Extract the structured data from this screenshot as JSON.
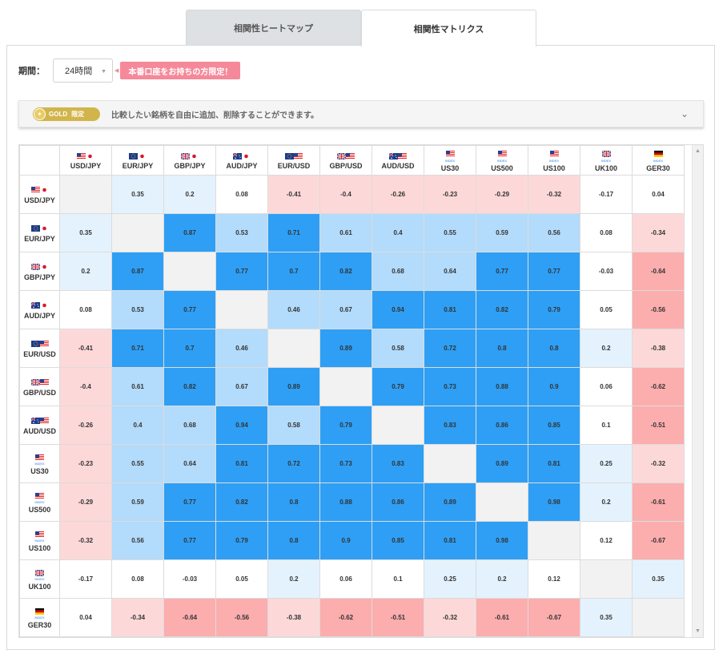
{
  "tabs": [
    {
      "label": "相関性ヒートマップ",
      "active": false
    },
    {
      "label": "相関性マトリクス",
      "active": true
    }
  ],
  "period": {
    "label": "期間：",
    "value": "24時間"
  },
  "promo_badge": "本番口座をお持ちの方限定！",
  "gold_bar": {
    "badge_gold": "GOLD",
    "badge_limited": "限定",
    "description": "比較したい銘柄を自由に追加、削除することができます。"
  },
  "colors": {
    "strong_pos": "#2e9ff5",
    "mid_pos": "#b3dbfb",
    "weak_pos": "#e4f2fd",
    "strong_neg": "#fcadae",
    "mid_neg": "#fdd8d8",
    "diag": "#f2f2f2"
  },
  "instruments": [
    {
      "label": "USD/JPY",
      "flags": [
        "us",
        "jp"
      ],
      "sub": ""
    },
    {
      "label": "EUR/JPY",
      "flags": [
        "eu",
        "jp"
      ],
      "sub": ""
    },
    {
      "label": "GBP/JPY",
      "flags": [
        "gb",
        "jp"
      ],
      "sub": ""
    },
    {
      "label": "AUD/JPY",
      "flags": [
        "au",
        "jp"
      ],
      "sub": ""
    },
    {
      "label": "EUR/USD",
      "flags": [
        "eu",
        "us"
      ],
      "sub": ""
    },
    {
      "label": "GBP/USD",
      "flags": [
        "gb",
        "us"
      ],
      "sub": ""
    },
    {
      "label": "AUD/USD",
      "flags": [
        "au",
        "us"
      ],
      "sub": ""
    },
    {
      "label": "US30",
      "flags": [
        "us"
      ],
      "sub": "INDEX"
    },
    {
      "label": "US500",
      "flags": [
        "us"
      ],
      "sub": "INDEX"
    },
    {
      "label": "US100",
      "flags": [
        "us"
      ],
      "sub": "INDEX"
    },
    {
      "label": "UK100",
      "flags": [
        "gb"
      ],
      "sub": "INDEX"
    },
    {
      "label": "GER30",
      "flags": [
        "de"
      ],
      "sub": "INDEX"
    }
  ],
  "matrix": [
    [
      null,
      "0.35",
      "0.2",
      "0.08",
      "-0.41",
      "-0.4",
      "-0.26",
      "-0.23",
      "-0.29",
      "-0.32",
      "-0.17",
      "0.04"
    ],
    [
      "0.35",
      null,
      "0.87",
      "0.53",
      "0.71",
      "0.61",
      "0.4",
      "0.55",
      "0.59",
      "0.56",
      "0.08",
      "-0.34"
    ],
    [
      "0.2",
      "0.87",
      null,
      "0.77",
      "0.7",
      "0.82",
      "0.68",
      "0.64",
      "0.77",
      "0.77",
      "-0.03",
      "-0.64"
    ],
    [
      "0.08",
      "0.53",
      "0.77",
      null,
      "0.46",
      "0.67",
      "0.94",
      "0.81",
      "0.82",
      "0.79",
      "0.05",
      "-0.56"
    ],
    [
      "-0.41",
      "0.71",
      "0.7",
      "0.46",
      null,
      "0.89",
      "0.58",
      "0.72",
      "0.8",
      "0.8",
      "0.2",
      "-0.38"
    ],
    [
      "-0.4",
      "0.61",
      "0.82",
      "0.67",
      "0.89",
      null,
      "0.79",
      "0.73",
      "0.88",
      "0.9",
      "0.06",
      "-0.62"
    ],
    [
      "-0.26",
      "0.4",
      "0.68",
      "0.94",
      "0.58",
      "0.79",
      null,
      "0.83",
      "0.86",
      "0.85",
      "0.1",
      "-0.51"
    ],
    [
      "-0.23",
      "0.55",
      "0.64",
      "0.81",
      "0.72",
      "0.73",
      "0.83",
      null,
      "0.89",
      "0.81",
      "0.25",
      "-0.32"
    ],
    [
      "-0.29",
      "0.59",
      "0.77",
      "0.82",
      "0.8",
      "0.88",
      "0.86",
      "0.89",
      null,
      "0.98",
      "0.2",
      "-0.61"
    ],
    [
      "-0.32",
      "0.56",
      "0.77",
      "0.79",
      "0.8",
      "0.9",
      "0.85",
      "0.81",
      "0.98",
      null,
      "0.12",
      "-0.67"
    ],
    [
      "-0.17",
      "0.08",
      "-0.03",
      "0.05",
      "0.2",
      "0.06",
      "0.1",
      "0.25",
      "0.2",
      "0.12",
      null,
      "0.35"
    ],
    [
      "0.04",
      "-0.34",
      "-0.64",
      "-0.56",
      "-0.38",
      "-0.62",
      "-0.51",
      "-0.32",
      "-0.61",
      "-0.67",
      "0.35",
      null
    ]
  ]
}
